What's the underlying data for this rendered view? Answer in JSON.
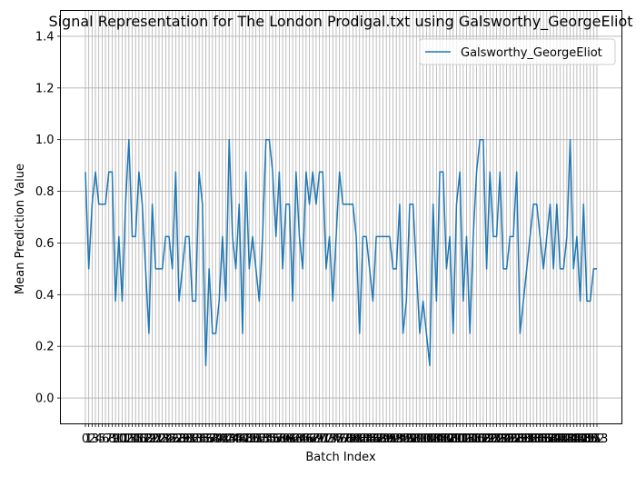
{
  "chart_data": {
    "type": "line",
    "title": "Signal Representation for The London Prodigal.txt using Galsworthy_GeorgeEliot",
    "xlabel": "Batch Index",
    "ylabel": "Mean Prediction Value",
    "ylim": [
      -0.1,
      1.5
    ],
    "yticks": [
      0.0,
      0.2,
      0.4,
      0.6,
      0.8,
      1.0,
      1.2,
      1.4
    ],
    "ytick_labels": [
      "0.0",
      "0.2",
      "0.4",
      "0.6",
      "0.8",
      "1.0",
      "1.2",
      "1.4"
    ],
    "grid": true,
    "legend_position": "top-right",
    "series": [
      {
        "name": "Galsworthy_GeorgeEliot",
        "color": "#1f77b4",
        "x": [
          0,
          1,
          2,
          3,
          4,
          5,
          6,
          7,
          8,
          9,
          10,
          11,
          12,
          13,
          14,
          15,
          16,
          17,
          18,
          19,
          20,
          21,
          22,
          23,
          24,
          25,
          26,
          27,
          28,
          29,
          30,
          31,
          32,
          33,
          34,
          35,
          36,
          37,
          38,
          39,
          40,
          41,
          42,
          43,
          44,
          45,
          46,
          47,
          48,
          49,
          50,
          51,
          52,
          53,
          54,
          55,
          56,
          57,
          58,
          59,
          60,
          61,
          62,
          63,
          64,
          65,
          66,
          67,
          68,
          69,
          70,
          71,
          72,
          73,
          74,
          75,
          76,
          77,
          78,
          79,
          80,
          81,
          82,
          83,
          84,
          85,
          86,
          87,
          88,
          89,
          90,
          91,
          92,
          93,
          94,
          95,
          96,
          97,
          98,
          99,
          100,
          101,
          102,
          103,
          104,
          105,
          106,
          107,
          108,
          109,
          110,
          111,
          112,
          113,
          114,
          115,
          116,
          117,
          118,
          119,
          120,
          121,
          122,
          123,
          124,
          125,
          126,
          127,
          128,
          129,
          130,
          131,
          132,
          133,
          134,
          135,
          136,
          137,
          138,
          139,
          140,
          141,
          142,
          143,
          144,
          145,
          146,
          147,
          148,
          149,
          150,
          151,
          152,
          153
        ],
        "values": [
          0.875,
          0.5,
          0.75,
          0.875,
          0.75,
          0.75,
          0.75,
          0.875,
          0.875,
          0.375,
          0.625,
          0.375,
          0.75,
          1.0,
          0.625,
          0.625,
          0.875,
          0.75,
          0.5,
          0.25,
          0.75,
          0.5,
          0.5,
          0.5,
          0.625,
          0.625,
          0.5,
          0.875,
          0.375,
          0.5,
          0.625,
          0.625,
          0.375,
          0.375,
          0.875,
          0.75,
          0.125,
          0.5,
          0.25,
          0.25,
          0.375,
          0.625,
          0.375,
          1.0,
          0.625,
          0.5,
          0.75,
          0.25,
          0.875,
          0.5,
          0.625,
          0.5,
          0.375,
          0.625,
          1.0,
          1.0,
          0.875,
          0.625,
          0.875,
          0.5,
          0.75,
          0.75,
          0.375,
          0.875,
          0.625,
          0.5,
          0.875,
          0.75,
          0.875,
          0.75,
          0.875,
          0.875,
          0.5,
          0.625,
          0.375,
          0.625,
          0.875,
          0.75,
          0.75,
          0.75,
          0.75,
          0.625,
          0.25,
          0.625,
          0.625,
          0.5,
          0.375,
          0.625,
          0.625,
          0.625,
          0.625,
          0.625,
          0.5,
          0.5,
          0.75,
          0.25,
          0.375,
          0.75,
          0.75,
          0.5,
          0.25,
          0.375,
          0.25,
          0.125,
          0.75,
          0.375,
          0.875,
          0.875,
          0.5,
          0.625,
          0.25,
          0.75,
          0.875,
          0.375,
          0.625,
          0.25,
          0.625,
          0.875,
          1.0,
          1.0,
          0.5,
          0.875,
          0.625,
          0.625,
          0.875,
          0.5,
          0.5,
          0.625,
          0.625,
          0.875,
          0.25,
          0.375,
          0.5,
          0.625,
          0.75,
          0.75,
          0.625,
          0.5,
          0.625,
          0.75,
          0.5,
          0.75,
          0.5,
          0.5,
          0.625,
          1.0,
          0.5,
          0.625,
          0.375,
          0.75,
          0.375,
          0.375,
          0.5,
          0.5
        ]
      }
    ]
  }
}
